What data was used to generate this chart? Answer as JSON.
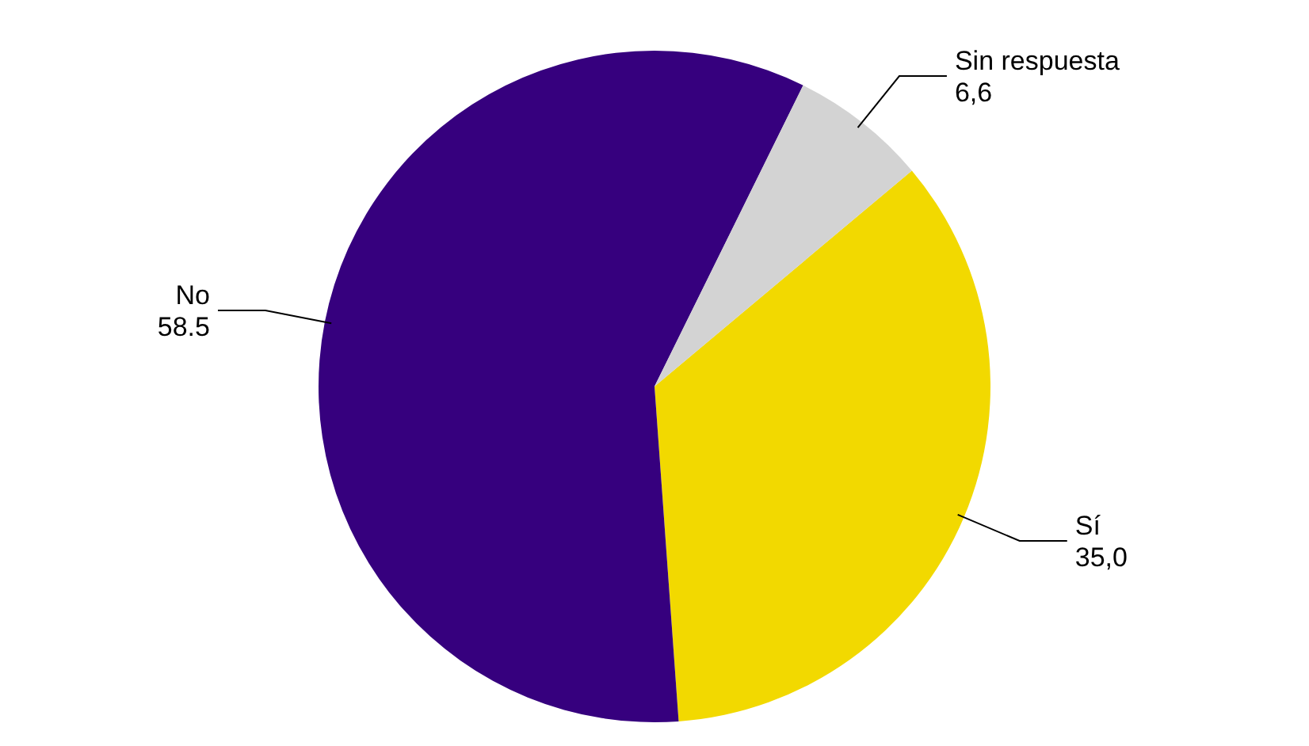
{
  "chart_data": {
    "type": "pie",
    "categories": [
      "Sí",
      "No",
      "Sin respuesta"
    ],
    "values": [
      35.0,
      58.5,
      6.6
    ],
    "value_labels": [
      "35,0",
      "58.5",
      "6,6"
    ],
    "colors": [
      "#f2d900",
      "#36007e",
      "#d3d3d3"
    ]
  }
}
